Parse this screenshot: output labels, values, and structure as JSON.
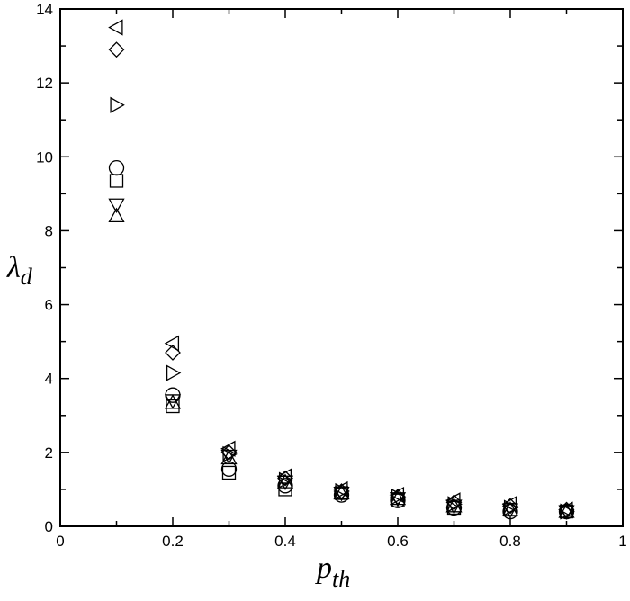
{
  "chart_data": {
    "type": "scatter",
    "title": "",
    "xlabel": "p",
    "xlabel_sub": "th",
    "ylabel": "λ",
    "ylabel_sub": "d",
    "xlim": [
      0,
      1
    ],
    "ylim": [
      0,
      14
    ],
    "xticks": [
      0,
      0.2,
      0.4,
      0.6,
      0.8,
      1
    ],
    "xtick_labels": [
      "0",
      "0.2",
      "0.4",
      "0.6",
      "0.8",
      "1"
    ],
    "yticks": [
      0,
      2,
      4,
      6,
      8,
      10,
      12,
      14
    ],
    "ytick_labels": [
      "0",
      "2",
      "4",
      "6",
      "8",
      "10",
      "12",
      "14"
    ],
    "grid": false,
    "legend": "none",
    "x": [
      0.1,
      0.2,
      0.3,
      0.4,
      0.5,
      0.6,
      0.7,
      0.8,
      0.9
    ],
    "series": [
      {
        "marker": "triangle-left",
        "values": [
          13.5,
          4.95,
          2.1,
          1.35,
          1.0,
          0.85,
          0.7,
          0.6,
          0.45
        ]
      },
      {
        "marker": "diamond",
        "values": [
          12.9,
          4.7,
          2.0,
          1.3,
          0.95,
          0.8,
          0.65,
          0.55,
          0.45
        ]
      },
      {
        "marker": "triangle-right",
        "values": [
          11.4,
          4.15,
          1.95,
          1.25,
          0.95,
          0.8,
          0.6,
          0.5,
          0.4
        ]
      },
      {
        "marker": "circle",
        "values": [
          9.7,
          3.55,
          1.55,
          1.1,
          0.85,
          0.7,
          0.5,
          0.4,
          0.4
        ]
      },
      {
        "marker": "square",
        "values": [
          9.35,
          3.25,
          1.45,
          1.0,
          0.9,
          0.7,
          0.5,
          0.45,
          0.4
        ]
      },
      {
        "marker": "triangle-down",
        "values": [
          8.7,
          3.4,
          1.9,
          1.2,
          0.9,
          0.75,
          0.55,
          0.45,
          0.4
        ]
      },
      {
        "marker": "triangle-up",
        "values": [
          8.4,
          3.35,
          1.85,
          1.2,
          0.9,
          0.75,
          0.55,
          0.45,
          0.4
        ]
      }
    ],
    "marker_color": "#000000"
  }
}
